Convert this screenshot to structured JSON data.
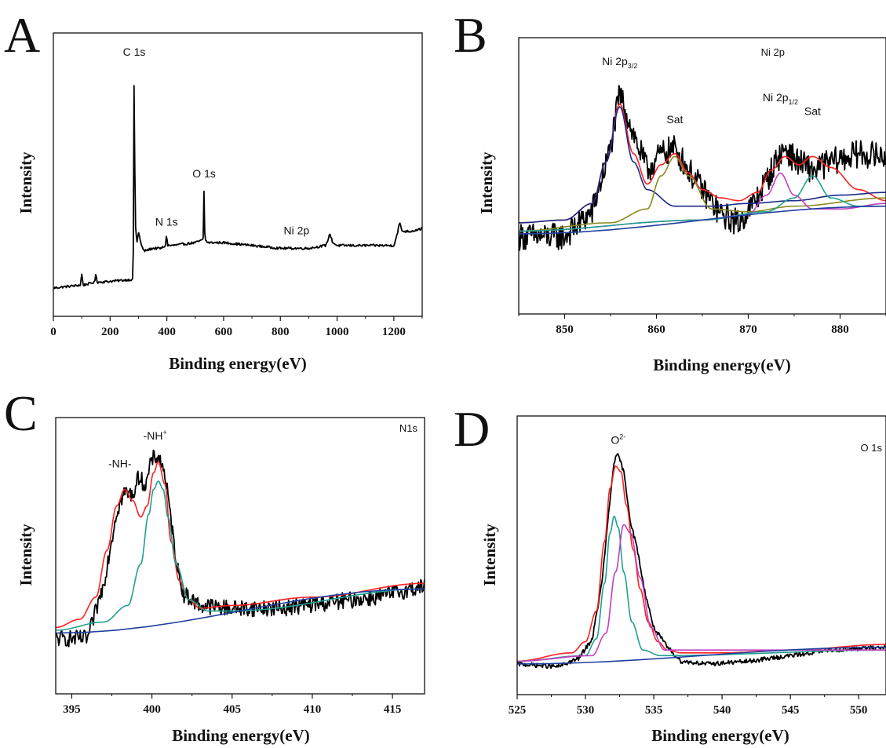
{
  "chart_data": [
    {
      "panel": "A",
      "type": "line",
      "corner_label": "",
      "xlabel": "Binding energy(eV)",
      "ylabel": "Intensity",
      "xlim": [
        0,
        1300
      ],
      "ylim": [
        0,
        100
      ],
      "xticks": [
        0,
        200,
        400,
        600,
        800,
        1000,
        1200
      ],
      "annotations": [
        {
          "text": "C 1s",
          "x": 285,
          "y": 92
        },
        {
          "text": "O 1s",
          "x": 531,
          "y": 49
        },
        {
          "text": "N 1s",
          "x": 399,
          "y": 32
        },
        {
          "text": "Ni 2p",
          "x": 857,
          "y": 29
        }
      ],
      "series": [
        {
          "color": "#000000",
          "noise": 0.4,
          "x": [
            0,
            95,
            100,
            105,
            145,
            150,
            155,
            280,
            283,
            284,
            285,
            286,
            290,
            295,
            300,
            310,
            320,
            350,
            380,
            396,
            399,
            402,
            420,
            500,
            528,
            531,
            534,
            545,
            600,
            700,
            800,
            900,
            960,
            975,
            985,
            1000,
            1100,
            1200,
            1212,
            1220,
            1230,
            1260,
            1300
          ],
          "y": [
            10,
            11,
            15,
            11,
            12,
            15,
            12,
            13,
            30,
            75,
            91,
            60,
            30,
            26,
            30,
            25,
            23,
            24,
            24,
            25,
            30,
            25,
            25,
            26,
            27,
            45,
            27,
            26,
            26,
            25,
            24,
            24,
            25,
            29,
            26,
            25,
            25,
            25,
            29,
            33,
            30,
            30,
            31
          ]
        }
      ]
    },
    {
      "panel": "B",
      "type": "line",
      "corner_label": "Ni 2p",
      "xlabel": "Binding energy(eV)",
      "ylabel": "Intensity",
      "xlim": [
        845,
        885
      ],
      "ylim": [
        0,
        100
      ],
      "xticks": [
        850,
        860,
        870,
        880
      ],
      "annotations": [
        {
          "text": "Ni 2p",
          "sub": "3/2",
          "x": 856,
          "y": 90
        },
        {
          "text": "Sat",
          "x": 862,
          "y": 69
        },
        {
          "text": "Ni 2p",
          "sub": "1/2",
          "x": 873.5,
          "y": 77
        },
        {
          "text": "Sat",
          "x": 877,
          "y": 72
        }
      ],
      "series": [
        {
          "color": "#000000",
          "noise": 5,
          "x": [
            845,
            850,
            853,
            855,
            856,
            857.5,
            859,
            860.5,
            862,
            863.5,
            865,
            867,
            869,
            871,
            873,
            874,
            875,
            877,
            879,
            882,
            885
          ],
          "y": [
            28,
            28,
            37,
            60,
            80,
            65,
            52,
            58,
            60,
            52,
            45,
            36,
            33,
            42,
            55,
            60,
            56,
            52,
            55,
            58,
            57
          ]
        },
        {
          "color": "#ff2020",
          "x": [
            845,
            850,
            853,
            854.5,
            856,
            857.5,
            859,
            860.5,
            862,
            863.5,
            865,
            867,
            869,
            871,
            872.5,
            874,
            875.5,
            877,
            879,
            882,
            885
          ],
          "y": [
            33,
            34,
            40,
            55,
            76,
            58,
            47,
            54,
            58,
            51,
            45,
            42,
            41,
            44,
            52,
            57,
            54,
            57,
            53,
            45,
            41
          ]
        },
        {
          "color": "#1a2a8a",
          "x": [
            845,
            850,
            853,
            854.5,
            856,
            857.5,
            859,
            862,
            866,
            870,
            875,
            880,
            885
          ],
          "y": [
            33,
            34,
            40,
            55,
            75,
            55,
            45,
            39,
            39,
            40,
            41,
            43,
            44
          ]
        },
        {
          "color": "#8a8a20",
          "x": [
            845,
            855,
            859,
            860.5,
            862,
            863.5,
            866,
            870,
            875,
            885
          ],
          "y": [
            30,
            33,
            38,
            50,
            57,
            50,
            38,
            37,
            39,
            42
          ]
        },
        {
          "color": "#c040c0",
          "x": [
            845,
            865,
            870,
            872,
            873.5,
            875,
            877,
            880,
            885
          ],
          "y": [
            30,
            34,
            36,
            43,
            51,
            43,
            38,
            38,
            40
          ]
        },
        {
          "color": "#20a090",
          "x": [
            845,
            865,
            872,
            875,
            877,
            879,
            882,
            885
          ],
          "y": [
            30,
            34,
            37,
            42,
            50,
            42,
            39,
            39
          ]
        },
        {
          "color": "#2040a0",
          "x": [
            845,
            885
          ],
          "y": [
            29,
            39
          ]
        }
      ]
    },
    {
      "panel": "C",
      "type": "line",
      "corner_label": "N1s",
      "xlabel": "Binding energy(eV)",
      "ylabel": "Intensity",
      "xlim": [
        394,
        417
      ],
      "ylim": [
        0,
        100
      ],
      "xticks": [
        395,
        400,
        405,
        410,
        415
      ],
      "annotations": [
        {
          "text": "-NH-",
          "x": 398,
          "y": 82
        },
        {
          "text": "-NH",
          "sup": "+",
          "x": 400.2,
          "y": 92
        }
      ],
      "series": [
        {
          "color": "#000000",
          "noise": 3,
          "x": [
            394,
            396,
            397,
            397.8,
            398.3,
            398.8,
            399.2,
            399.6,
            400,
            400.4,
            400.8,
            401.2,
            401.6,
            402,
            403,
            405,
            408,
            411,
            414,
            417
          ],
          "y": [
            20,
            20,
            40,
            66,
            73,
            72,
            79,
            75,
            85,
            86,
            80,
            62,
            45,
            36,
            32,
            31,
            31,
            33,
            35,
            39
          ]
        },
        {
          "color": "#ff2020",
          "x": [
            394,
            395.5,
            396.5,
            397.2,
            397.8,
            398.3,
            398.8,
            399.3,
            399.7,
            400.1,
            400.4,
            400.8,
            401.2,
            401.7,
            402.3,
            403,
            405,
            410,
            417
          ],
          "y": [
            24,
            27,
            35,
            52,
            68,
            74,
            70,
            64,
            68,
            80,
            84,
            76,
            55,
            41,
            34,
            31,
            32,
            35,
            40
          ]
        },
        {
          "color": "#20a090",
          "x": [
            394,
            397,
            398.5,
            399.3,
            399.8,
            400.1,
            400.4,
            400.7,
            401,
            401.5,
            402.3,
            403.5,
            405,
            417
          ],
          "y": [
            23,
            26,
            32,
            47,
            65,
            74,
            77,
            74,
            64,
            47,
            34,
            30,
            30,
            38
          ]
        },
        {
          "color": "#2040a0",
          "x": [
            394,
            417
          ],
          "y": [
            22,
            38
          ]
        }
      ]
    },
    {
      "panel": "D",
      "type": "line",
      "corner_label": "O 1s",
      "xlabel": "Binding energy(eV)",
      "ylabel": "Intensity",
      "xlim": [
        525,
        552
      ],
      "ylim": [
        0,
        100
      ],
      "xticks": [
        525,
        530,
        535,
        540,
        545,
        550
      ],
      "annotations": [
        {
          "text": "O",
          "sup": "2-",
          "x": 532.4,
          "y": 90
        }
      ],
      "series": [
        {
          "color": "#000000",
          "noise": 0.8,
          "x": [
            525,
            528,
            529.5,
            530.5,
            531.2,
            531.8,
            532.1,
            532.4,
            532.8,
            533.3,
            533.8,
            534.3,
            535,
            536,
            537,
            539,
            542,
            545,
            548,
            552
          ],
          "y": [
            11,
            10,
            13,
            20,
            40,
            70,
            84,
            86,
            80,
            62,
            52,
            38,
            24,
            17,
            12,
            11,
            12,
            14,
            16,
            17
          ]
        },
        {
          "color": "#ff2020",
          "x": [
            525,
            529,
            530,
            530.8,
            531.4,
            531.8,
            532.2,
            532.6,
            533,
            533.5,
            534,
            534.6,
            535.3,
            536,
            537,
            540,
            545,
            552
          ],
          "y": [
            12,
            15,
            19,
            30,
            55,
            74,
            82,
            80,
            68,
            52,
            38,
            26,
            19,
            16,
            15,
            15,
            16,
            18
          ]
        },
        {
          "color": "#20a090",
          "x": [
            525,
            530,
            530.8,
            531.4,
            531.8,
            532.1,
            532.4,
            532.8,
            533.4,
            534.2,
            535.5,
            552
          ],
          "y": [
            12,
            14,
            20,
            40,
            58,
            64,
            60,
            44,
            26,
            16,
            14,
            16
          ]
        },
        {
          "color": "#c040c0",
          "x": [
            525,
            530.5,
            531.5,
            532.2,
            532.8,
            533.3,
            534,
            534.8,
            535.8,
            552
          ],
          "y": [
            12,
            14,
            22,
            44,
            61,
            58,
            42,
            24,
            16,
            16
          ]
        },
        {
          "color": "#2040a0",
          "x": [
            525,
            552
          ],
          "y": [
            11,
            17
          ]
        }
      ]
    }
  ]
}
